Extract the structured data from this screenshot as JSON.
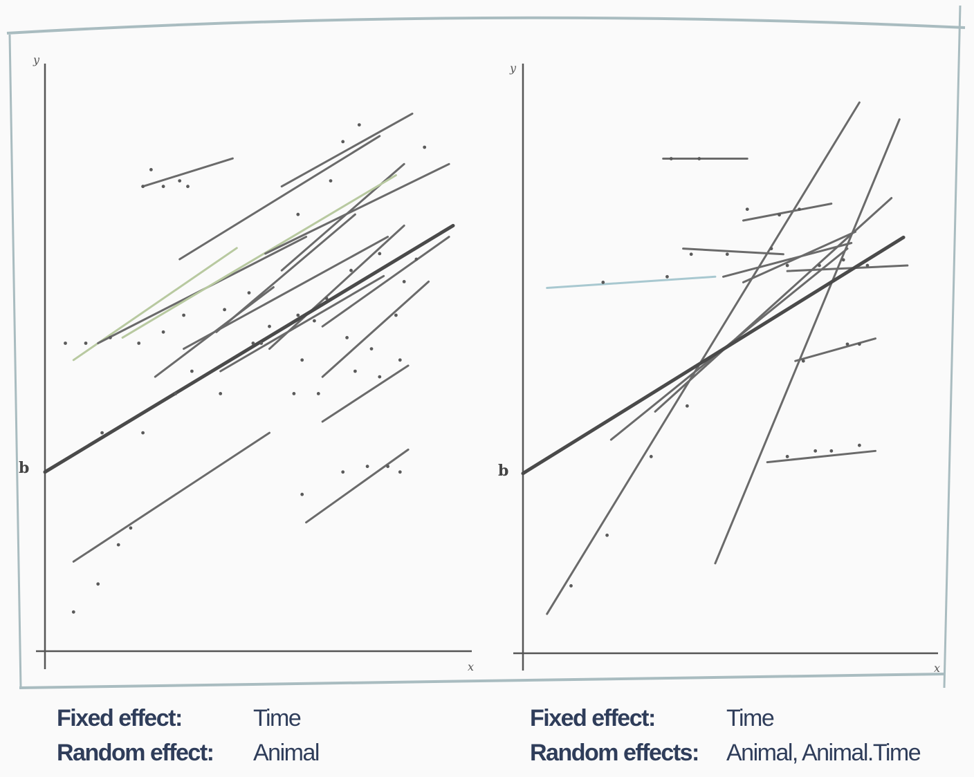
{
  "charts": [
    {
      "id": "left",
      "y_axis_label": "y",
      "x_axis_label": "x",
      "intercept_tick_label": "b",
      "captions": {
        "fixed_label": "Fixed effect:",
        "fixed_value": "Time",
        "random_label": "Random effect:",
        "random_value": "Animal"
      }
    },
    {
      "id": "right",
      "y_axis_label": "y",
      "x_axis_label": "x",
      "intercept_tick_label": "b",
      "captions": {
        "fixed_label": "Fixed effect:",
        "fixed_value": "Time",
        "random_label": "Random effects:",
        "random_value": "Animal, Animal.Time"
      }
    }
  ],
  "colors": {
    "frame": "#a9bcc0",
    "axis": "#555555",
    "line": "#6a6a6a",
    "bold_line": "#4a4a4a",
    "highlight_line": "#b8c9a0",
    "light_blue_line": "#a8c8d0",
    "caption": "#2f3d5a"
  },
  "chart_data": [
    {
      "type": "line",
      "xlim": [
        0,
        10
      ],
      "ylim": [
        0,
        10
      ],
      "intercept": 3.2,
      "fixed_line": {
        "x": [
          0,
          10
        ],
        "y": [
          3.2,
          7.6
        ]
      },
      "series": [
        {
          "x": [
            0.7,
            4.7
          ],
          "y": [
            5.2,
            7.2
          ],
          "style": "highlight"
        },
        {
          "x": [
            3.3,
            8.2
          ],
          "y": [
            7.0,
            9.2
          ]
        },
        {
          "x": [
            5.8,
            9.0
          ],
          "y": [
            8.3,
            9.6
          ]
        },
        {
          "x": [
            5.8,
            8.8
          ],
          "y": [
            6.8,
            8.7
          ]
        },
        {
          "x": [
            2.4,
            4.6
          ],
          "y": [
            8.3,
            8.8
          ]
        },
        {
          "x": [
            1.3,
            6.4
          ],
          "y": [
            5.5,
            7.4
          ]
        },
        {
          "x": [
            3.4,
            8.4
          ],
          "y": [
            5.4,
            7.4
          ]
        },
        {
          "x": [
            4.2,
            7.6
          ],
          "y": [
            5.7,
            7.8
          ]
        },
        {
          "x": [
            1.9,
            8.6
          ],
          "y": [
            5.6,
            8.5
          ],
          "style": "highlight"
        },
        {
          "x": [
            2.7,
            5.6
          ],
          "y": [
            4.9,
            6.5
          ]
        },
        {
          "x": [
            4.3,
            8.3
          ],
          "y": [
            5.0,
            6.7
          ]
        },
        {
          "x": [
            5.5,
            8.8
          ],
          "y": [
            5.4,
            7.6
          ]
        },
        {
          "x": [
            6.8,
            9.4
          ],
          "y": [
            4.9,
            6.6
          ]
        },
        {
          "x": [
            6.8,
            9.9
          ],
          "y": [
            5.8,
            7.4
          ]
        },
        {
          "x": [
            5.4,
            9.9
          ],
          "y": [
            7.1,
            8.7
          ]
        },
        {
          "x": [
            6.8,
            8.9
          ],
          "y": [
            4.1,
            5.1
          ]
        },
        {
          "x": [
            0.7,
            5.5
          ],
          "y": [
            1.6,
            3.9
          ]
        },
        {
          "x": [
            6.4,
            8.9
          ],
          "y": [
            2.3,
            3.6
          ]
        }
      ],
      "points": [
        {
          "x": [
            0.5,
            1.0,
            1.6,
            2.3,
            2.9,
            3.4
          ],
          "y": [
            5.5,
            5.5,
            5.6,
            5.5,
            5.7,
            6.0
          ]
        },
        {
          "x": [
            2.4,
            2.6,
            2.9,
            3.3,
            3.5
          ],
          "y": [
            8.3,
            8.6,
            8.3,
            8.4,
            8.3
          ]
        },
        {
          "x": [
            4.4,
            5.0,
            6.2,
            7.0,
            7.3,
            7.7
          ],
          "y": [
            6.1,
            6.4,
            7.8,
            8.4,
            9.1,
            9.4
          ]
        },
        {
          "x": [
            9.3
          ],
          "y": [
            9.0
          ]
        },
        {
          "x": [
            5.3,
            6.2,
            6.9,
            7.5,
            8.2,
            8.8,
            9.1
          ],
          "y": [
            5.5,
            6.0,
            6.3,
            6.8,
            7.1,
            6.6,
            7.0
          ]
        },
        {
          "x": [
            3.2,
            3.6,
            4.3,
            5.1,
            5.5,
            6.1,
            6.3
          ],
          "y": [
            4.6,
            5.0,
            4.6,
            5.5,
            5.8,
            4.6,
            5.2
          ]
        },
        {
          "x": [
            6.7,
            7.6,
            8.2,
            8.7
          ],
          "y": [
            4.6,
            5.0,
            4.9,
            5.2
          ]
        },
        {
          "x": [
            6.6,
            7.4,
            8.0,
            8.6
          ],
          "y": [
            5.9,
            5.6,
            5.4,
            6.0
          ]
        },
        {
          "x": [
            1.4,
            2.4
          ],
          "y": [
            3.9,
            3.9
          ]
        },
        {
          "x": [
            0.7,
            1.3,
            1.8,
            2.1
          ],
          "y": [
            0.7,
            1.2,
            1.9,
            2.2
          ]
        },
        {
          "x": [
            6.3,
            7.3,
            7.9,
            8.4,
            8.7
          ],
          "y": [
            2.8,
            3.2,
            3.3,
            3.3,
            3.2
          ]
        }
      ]
    },
    {
      "type": "line",
      "xlim": [
        0,
        10
      ],
      "ylim": [
        0,
        10
      ],
      "intercept": 3.2,
      "fixed_line": {
        "x": [
          0,
          9.5
        ],
        "y": [
          3.2,
          7.4
        ]
      },
      "series": [
        {
          "x": [
            0.6,
            8.4
          ],
          "y": [
            0.7,
            9.8
          ]
        },
        {
          "x": [
            4.8,
            9.4
          ],
          "y": [
            1.6,
            9.5
          ]
        },
        {
          "x": [
            2.2,
            8.1
          ],
          "y": [
            3.8,
            7.2
          ]
        },
        {
          "x": [
            3.3,
            9.2
          ],
          "y": [
            4.3,
            8.1
          ]
        },
        {
          "x": [
            5.0,
            8.2
          ],
          "y": [
            6.7,
            7.3
          ]
        },
        {
          "x": [
            5.5,
            7.7
          ],
          "y": [
            7.7,
            8.0
          ]
        },
        {
          "x": [
            5.5,
            8.3
          ],
          "y": [
            6.6,
            7.5
          ]
        },
        {
          "x": [
            3.5,
            5.6
          ],
          "y": [
            8.8,
            8.8
          ]
        },
        {
          "x": [
            4.0,
            6.5
          ],
          "y": [
            7.2,
            7.1
          ]
        },
        {
          "x": [
            0.6,
            4.8
          ],
          "y": [
            6.5,
            6.7
          ],
          "style": "light"
        },
        {
          "x": [
            6.6,
            9.6
          ],
          "y": [
            6.8,
            6.9
          ]
        },
        {
          "x": [
            6.8,
            8.8
          ],
          "y": [
            5.2,
            5.6
          ]
        },
        {
          "x": [
            6.1,
            8.8
          ],
          "y": [
            3.4,
            3.6
          ]
        }
      ],
      "points": [
        {
          "x": [
            3.7,
            4.4
          ],
          "y": [
            8.8,
            8.8
          ]
        },
        {
          "x": [
            4.2,
            5.1,
            6.2
          ],
          "y": [
            7.1,
            7.1,
            7.2
          ]
        },
        {
          "x": [
            6.6,
            7.4,
            8.0,
            8.6
          ],
          "y": [
            6.9,
            6.9,
            7.0,
            6.9
          ]
        },
        {
          "x": [
            7.0,
            8.1,
            8.4
          ],
          "y": [
            5.2,
            5.5,
            5.5
          ]
        },
        {
          "x": [
            6.6,
            7.3,
            7.7,
            8.4
          ],
          "y": [
            3.5,
            3.6,
            3.6,
            3.7
          ]
        },
        {
          "x": [
            2.0,
            3.6
          ],
          "y": [
            6.6,
            6.7
          ]
        },
        {
          "x": [
            1.2,
            2.1,
            3.2,
            4.1
          ],
          "y": [
            1.2,
            2.1,
            3.5,
            4.4
          ]
        },
        {
          "x": [
            5.6,
            6.4,
            6.9
          ],
          "y": [
            7.9,
            7.8,
            7.9
          ]
        }
      ]
    }
  ]
}
